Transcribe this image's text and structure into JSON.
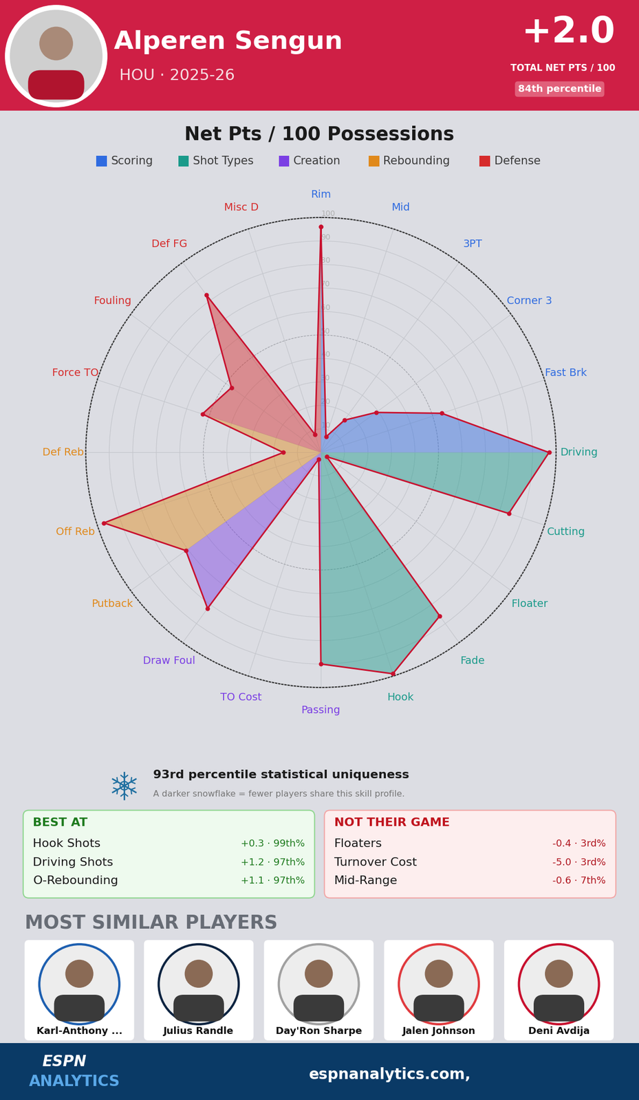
{
  "header": {
    "name": "Alperen Sengun",
    "team_season": "HOU · 2025-26",
    "total": "+2.0",
    "total_label": "TOTAL NET PTS / 100",
    "percentile": "84th percentile"
  },
  "chart_data": {
    "type": "radar",
    "title": "Net Pts / 100 Possessions",
    "ylim": [
      0,
      100
    ],
    "yticks": [
      10,
      20,
      30,
      40,
      50,
      60,
      70,
      80,
      90,
      100
    ],
    "grid": true,
    "groups": [
      {
        "name": "Scoring",
        "color": "#2f6be0",
        "categories": [
          "Rim",
          "Mid",
          "3PT",
          "Corner 3",
          "Fast Brk"
        ],
        "values": [
          96,
          7,
          17,
          29,
          54
        ]
      },
      {
        "name": "Shot Types",
        "color": "#1a9a8a",
        "categories": [
          "Driving",
          "Cutting",
          "Floater",
          "Fade",
          "Hook"
        ],
        "values": [
          97,
          84,
          3,
          86,
          99
        ]
      },
      {
        "name": "Creation",
        "color": "#7b3fe4",
        "categories": [
          "Passing",
          "TO Cost",
          "Draw Foul"
        ],
        "values": [
          90,
          3,
          82
        ]
      },
      {
        "name": "Rebounding",
        "color": "#e0891b",
        "categories": [
          "Putback",
          "Off Reb",
          "Def Reb"
        ],
        "values": [
          71,
          97,
          16
        ]
      },
      {
        "name": "Defense",
        "color": "#d62b2b",
        "categories": [
          "Force TO",
          "Fouling",
          "Def FG",
          "Misc D"
        ],
        "values": [
          53,
          47,
          83,
          8
        ]
      }
    ]
  },
  "uniqueness": {
    "title": "93rd percentile statistical uniqueness",
    "note": "A darker snowflake = fewer players share this skill profile."
  },
  "best_at": {
    "title": "BEST AT",
    "items": [
      {
        "name": "Hook Shots",
        "stat": "+0.3 · 99th%"
      },
      {
        "name": "Driving Shots",
        "stat": "+1.2 · 97th%"
      },
      {
        "name": "O-Rebounding",
        "stat": "+1.1 · 97th%"
      }
    ]
  },
  "not_their_game": {
    "title": "NOT THEIR GAME",
    "items": [
      {
        "name": "Floaters",
        "stat": "-0.4 · 3rd%"
      },
      {
        "name": "Turnover Cost",
        "stat": "-5.0 · 3rd%"
      },
      {
        "name": "Mid-Range",
        "stat": "-0.6 · 7th%"
      }
    ]
  },
  "similar_players": {
    "title": "MOST SIMILAR PLAYERS",
    "players": [
      "Karl-Anthony ...",
      "Julius Randle",
      "Day'Ron Sharpe",
      "Jalen Johnson",
      "Deni Avdija"
    ]
  },
  "footer": {
    "logo_top": "ESPN",
    "logo_bottom": "ANALYTICS",
    "url": "espnanalytics.com,"
  }
}
